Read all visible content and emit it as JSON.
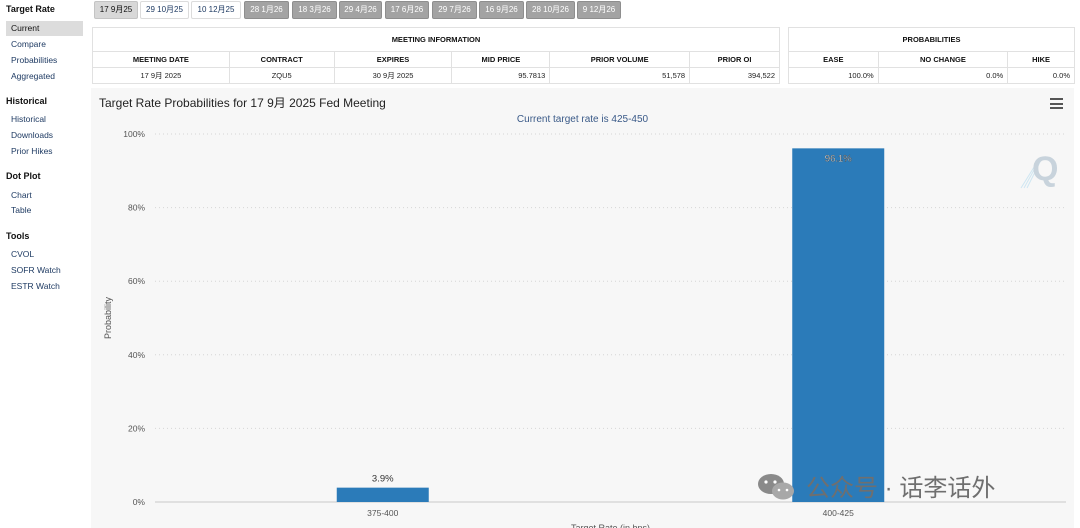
{
  "sidebar": {
    "sections": [
      {
        "title": "Target Rate",
        "items": [
          "Current",
          "Compare",
          "Probabilities",
          "Aggregated"
        ]
      },
      {
        "title": "Historical",
        "items": [
          "Historical",
          "Downloads",
          "Prior Hikes"
        ]
      },
      {
        "title": "Dot Plot",
        "items": [
          "Chart",
          "Table"
        ]
      },
      {
        "title": "Tools",
        "items": [
          "CVOL",
          "SOFR Watch",
          "ESTR Watch"
        ]
      }
    ],
    "active_item": "Current"
  },
  "tabs": [
    "17 9月25",
    "29 10月25",
    "10 12月25",
    "28 1月26",
    "18 3月26",
    "29 4月26",
    "17 6月26",
    "29 7月26",
    "16 9月26",
    "28 10月26",
    "9 12月26"
  ],
  "meeting_info": {
    "group_title": "MEETING INFORMATION",
    "headers": [
      "MEETING DATE",
      "CONTRACT",
      "EXPIRES",
      "MID PRICE",
      "PRIOR VOLUME",
      "PRIOR OI"
    ],
    "row": [
      "17 9月 2025",
      "ZQU5",
      "30 9月 2025",
      "95.7813",
      "51,578",
      "394,522"
    ]
  },
  "probabilities": {
    "group_title": "PROBABILITIES",
    "headers": [
      "EASE",
      "NO CHANGE",
      "HIKE"
    ],
    "row": [
      "100.0%",
      "0.0%",
      "0.0%"
    ]
  },
  "chart": {
    "title": "Target Rate Probabilities for 17 9月 2025 Fed Meeting",
    "subtitle": "Current target rate is 425-450",
    "bar_color": "#2b7bb9"
  },
  "chart_data": {
    "type": "bar",
    "title": "Target Rate Probabilities for 17 9月 2025 Fed Meeting",
    "subtitle": "Current target rate is 425-450",
    "categories": [
      "375-400",
      "400-425"
    ],
    "values": [
      3.9,
      96.1
    ],
    "data_labels": [
      "3.9%",
      "96.1%"
    ],
    "xlabel": "Target Rate (in bps)",
    "ylabel": "Probability",
    "ylim": [
      0,
      100
    ],
    "yticks": [
      "0%",
      "20%",
      "40%",
      "60%",
      "80%",
      "100%"
    ],
    "grid": true
  },
  "watermark": {
    "text": "公众号 · 话李话外",
    "icon": "wechat-icon"
  }
}
